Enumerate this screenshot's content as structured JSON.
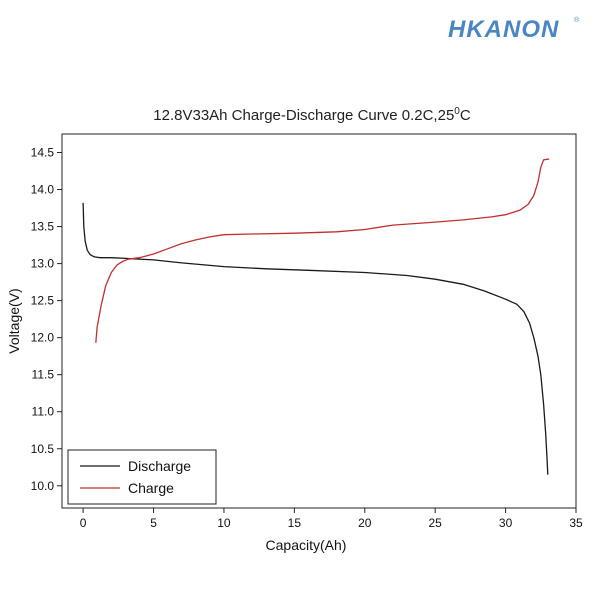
{
  "brand": {
    "logo_text": "HKANON",
    "registered_mark": "®",
    "color": "#4a86c5"
  },
  "chart_data": {
    "type": "line",
    "title": "12.8V33Ah Charge-Discharge Curve  0.2C,25",
    "title_superscript": "0",
    "title_suffix": "C",
    "xlabel": "Capacity(Ah)",
    "ylabel": "Voltage(V)",
    "xlim": [
      -1.5,
      35
    ],
    "ylim": [
      9.7,
      14.75
    ],
    "xticks": [
      0,
      5,
      10,
      15,
      20,
      25,
      30,
      35
    ],
    "yticks": [
      10.0,
      10.5,
      11.0,
      11.5,
      12.0,
      12.5,
      13.0,
      13.5,
      14.0,
      14.5
    ],
    "ytick_labels": [
      "10.0",
      "10.5",
      "11.0",
      "11.5",
      "12.0",
      "12.5",
      "13.0",
      "13.5",
      "14.0",
      "14.5"
    ],
    "grid": false,
    "legend_position": "bottom-left",
    "series": [
      {
        "name": "Discharge",
        "color": "#1a1a1a",
        "x": [
          0.0,
          0.05,
          0.15,
          0.3,
          0.5,
          0.8,
          1.2,
          2.0,
          3.0,
          5.0,
          7.0,
          10.0,
          13.0,
          16.0,
          20.0,
          23.0,
          25.0,
          27.0,
          28.5,
          30.0,
          30.8,
          31.3,
          31.7,
          32.0,
          32.3,
          32.5,
          32.7,
          32.85,
          32.95,
          33.0
        ],
        "y": [
          13.82,
          13.5,
          13.3,
          13.18,
          13.12,
          13.09,
          13.08,
          13.08,
          13.07,
          13.05,
          13.01,
          12.96,
          12.93,
          12.91,
          12.88,
          12.84,
          12.79,
          12.72,
          12.63,
          12.52,
          12.45,
          12.35,
          12.2,
          12.0,
          11.75,
          11.5,
          11.1,
          10.7,
          10.35,
          10.15
        ]
      },
      {
        "name": "Charge",
        "color": "#c0302e",
        "x": [
          0.9,
          1.0,
          1.3,
          1.6,
          2.0,
          2.4,
          2.8,
          3.2,
          4.0,
          5.0,
          6.0,
          7.0,
          8.0,
          9.0,
          10.0,
          12.0,
          15.0,
          18.0,
          20.0,
          22.0,
          25.0,
          27.0,
          29.0,
          30.0,
          31.0,
          31.6,
          32.0,
          32.3,
          32.5,
          32.7,
          33.0,
          33.1
        ],
        "y": [
          11.93,
          12.15,
          12.45,
          12.7,
          12.88,
          12.98,
          13.03,
          13.06,
          13.08,
          13.13,
          13.2,
          13.27,
          13.32,
          13.36,
          13.39,
          13.4,
          13.41,
          13.43,
          13.46,
          13.52,
          13.56,
          13.59,
          13.63,
          13.66,
          13.72,
          13.8,
          13.92,
          14.1,
          14.3,
          14.4,
          14.41,
          14.41
        ]
      }
    ]
  }
}
